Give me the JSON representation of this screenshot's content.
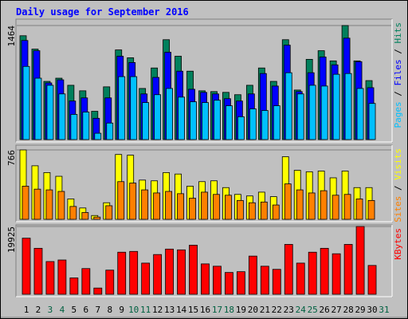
{
  "chart_data": [
    {
      "type": "bar",
      "title": "Daily usage for September 2016",
      "categories": [
        "1",
        "2",
        "3",
        "4",
        "5",
        "6",
        "7",
        "8",
        "9",
        "10",
        "11",
        "12",
        "13",
        "14",
        "15",
        "16",
        "17",
        "18",
        "19",
        "20",
        "21",
        "22",
        "23",
        "24",
        "25",
        "26",
        "27",
        "28",
        "29",
        "30",
        "31"
      ],
      "category_colors": [
        "#000000",
        "#000000",
        "#006040",
        "#006040",
        "#000000",
        "#000000",
        "#000000",
        "#000000",
        "#000000",
        "#006040",
        "#006040",
        "#000000",
        "#000000",
        "#000000",
        "#000000",
        "#000000",
        "#006040",
        "#006040",
        "#000000",
        "#000000",
        "#000000",
        "#000000",
        "#000000",
        "#006040",
        "#006040",
        "#000000",
        "#000000",
        "#000000",
        "#000000",
        "#000000",
        "#006040"
      ],
      "legend_separator": " / ",
      "ylim": [
        0,
        1464
      ],
      "yticks": [
        1464
      ],
      "series": [
        {
          "name": "Hits",
          "color": "#00805c",
          "values": [
            1333,
            1161,
            747,
            788,
            697,
            626,
            363,
            677,
            1151,
            1050,
            656,
            919,
            1282,
            1070,
            878,
            626,
            616,
            606,
            576,
            697,
            919,
            747,
            1282,
            636,
            1030,
            1141,
            1010,
            1464,
            1010,
            757,
            null
          ]
        },
        {
          "name": "Files",
          "color": "#0000ff",
          "values": [
            1272,
            1141,
            727,
            767,
            495,
            535,
            273,
            535,
            1070,
            989,
            586,
            798,
            1121,
            878,
            646,
            606,
            586,
            525,
            495,
            586,
            848,
            687,
            1212,
            616,
            858,
            1060,
            959,
            1302,
            1000,
            666,
            null
          ]
        },
        {
          "name": "Pages",
          "color": "#00c0ff",
          "values": [
            939,
            788,
            697,
            586,
            323,
            353,
            81,
            212,
            808,
            808,
            475,
            576,
            656,
            545,
            485,
            475,
            505,
            434,
            293,
            394,
            373,
            434,
            858,
            586,
            697,
            687,
            838,
            848,
            656,
            464,
            null
          ]
        }
      ]
    },
    {
      "type": "bar",
      "ylim": [
        0,
        766
      ],
      "yticks": [
        766
      ],
      "series": [
        {
          "name": "Visits",
          "color": "#ffff00",
          "values": [
            766,
            591,
            516,
            475,
            225,
            125,
            42,
            183,
            716,
            708,
            433,
            425,
            516,
            500,
            366,
            416,
            425,
            350,
            275,
            258,
            300,
            250,
            691,
            541,
            525,
            533,
            458,
            533,
            350,
            350,
            null
          ]
        },
        {
          "name": "Sites",
          "color": "#ff8000",
          "values": [
            366,
            333,
            325,
            308,
            142,
            75,
            25,
            150,
            416,
            400,
            325,
            291,
            308,
            283,
            233,
            300,
            275,
            266,
            208,
            183,
            191,
            158,
            391,
            325,
            291,
            316,
            266,
            275,
            225,
            208,
            null
          ]
        }
      ]
    },
    {
      "type": "bar",
      "ylim": [
        0,
        19925
      ],
      "yticks": [
        19925
      ],
      "series": [
        {
          "name": "KBytes",
          "color": "#ff0000",
          "values": [
            16490,
            13513,
            9619,
            10077,
            4810,
            7558,
            1832,
            7100,
            12368,
            12597,
            9161,
            11681,
            13283,
            13054,
            14428,
            8932,
            8245,
            6413,
            6642,
            11222,
            8245,
            7329,
            14658,
            9161,
            12368,
            13513,
            11910,
            14658,
            19925,
            8474,
            null
          ]
        }
      ]
    }
  ]
}
